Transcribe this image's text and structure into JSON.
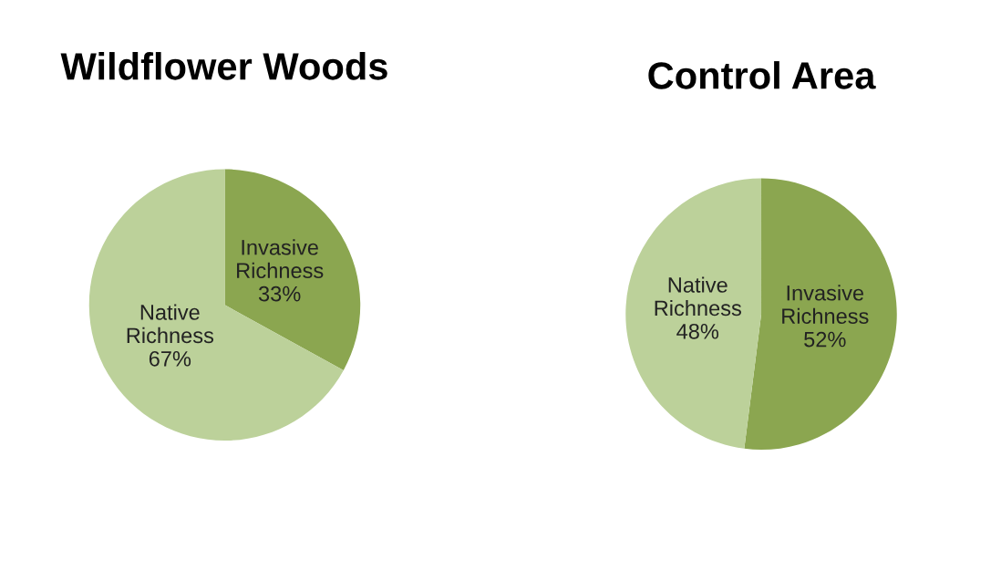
{
  "chart_data": [
    {
      "type": "pie",
      "title": "Wildflower Woods",
      "categories": [
        "Invasive Richness",
        "Native Richness"
      ],
      "values": [
        33,
        67
      ],
      "colors": [
        "#8ba650",
        "#bcd19a"
      ],
      "value_labels": [
        "33%",
        "67%"
      ],
      "legend": false
    },
    {
      "type": "pie",
      "title": "Control Area",
      "categories": [
        "Invasive Richness",
        "Native Richness"
      ],
      "values": [
        52,
        48
      ],
      "colors": [
        "#8ba650",
        "#bcd19a"
      ],
      "value_labels": [
        "52%",
        "48%"
      ],
      "legend": false
    }
  ]
}
